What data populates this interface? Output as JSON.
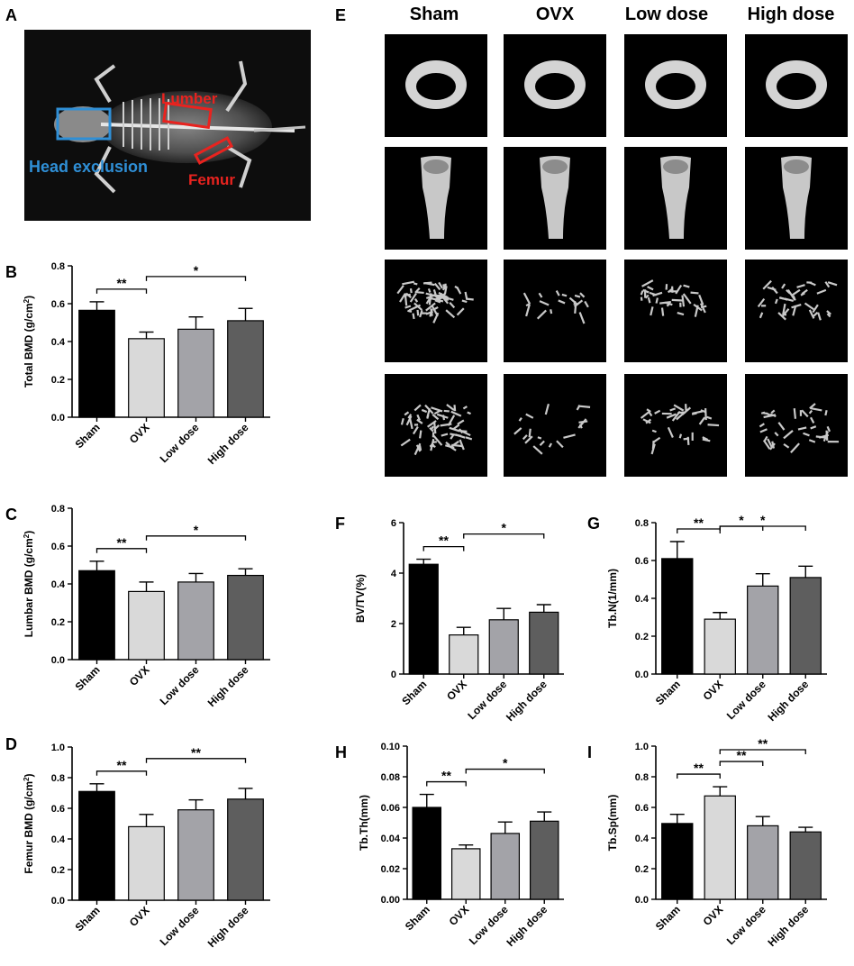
{
  "panels": {
    "A": "A",
    "B": "B",
    "C": "C",
    "D": "D",
    "E": "E",
    "F": "F",
    "G": "G",
    "H": "H",
    "I": "I"
  },
  "xray": {
    "labels": {
      "lumber": "Lumber",
      "head": "Head exclusion",
      "femur": "Femur"
    },
    "colors": {
      "lumber": "#e8231f",
      "femur": "#e8231f",
      "head": "#2f8fd6"
    }
  },
  "microct": {
    "columns": [
      "Sham",
      "OVX",
      "Low dose",
      "High dose"
    ],
    "rows": [
      "cortical cross-section",
      "femur 3D",
      "trabecular side view",
      "trabecular top view"
    ]
  },
  "colors": {
    "bars": [
      "#000000",
      "#d9d9d9",
      "#a3a3a8",
      "#5e5e5e"
    ]
  },
  "chart_data": [
    {
      "panel": "B",
      "type": "bar",
      "categories": [
        "Sham",
        "OVX",
        "Low dose",
        "High dose"
      ],
      "values": [
        0.565,
        0.415,
        0.465,
        0.51
      ],
      "errors": [
        0.045,
        0.035,
        0.065,
        0.065
      ],
      "ylabel_pre": "Total BMD (g/cm",
      "ylabel_sup": "2",
      "ylabel_post": ")",
      "ylim": [
        0,
        0.8
      ],
      "ticks": [
        "0.0",
        "0.2",
        "0.4",
        "0.6",
        "0.8"
      ],
      "sig": [
        {
          "from": 0,
          "to": 1,
          "label": "**"
        },
        {
          "from": 1,
          "to": 3,
          "label": "*"
        }
      ]
    },
    {
      "panel": "C",
      "type": "bar",
      "categories": [
        "Sham",
        "OVX",
        "Low dose",
        "High dose"
      ],
      "values": [
        0.47,
        0.36,
        0.41,
        0.445
      ],
      "errors": [
        0.05,
        0.05,
        0.045,
        0.035
      ],
      "ylabel_pre": "Lumbar BMD (g/cm",
      "ylabel_sup": "2",
      "ylabel_post": ")",
      "ylim": [
        0,
        0.8
      ],
      "ticks": [
        "0.0",
        "0.2",
        "0.4",
        "0.6",
        "0.8"
      ],
      "sig": [
        {
          "from": 0,
          "to": 1,
          "label": "**"
        },
        {
          "from": 1,
          "to": 3,
          "label": "*"
        }
      ]
    },
    {
      "panel": "D",
      "type": "bar",
      "categories": [
        "Sham",
        "OVX",
        "Low dose",
        "High dose"
      ],
      "values": [
        0.71,
        0.48,
        0.59,
        0.66
      ],
      "errors": [
        0.05,
        0.08,
        0.065,
        0.07
      ],
      "ylabel_pre": "Femur BMD (g/cm",
      "ylabel_sup": "2",
      "ylabel_post": ")",
      "ylim": [
        0,
        1.0
      ],
      "ticks": [
        "0.0",
        "0.2",
        "0.4",
        "0.6",
        "0.8",
        "1.0"
      ],
      "sig": [
        {
          "from": 0,
          "to": 1,
          "label": "**"
        },
        {
          "from": 1,
          "to": 3,
          "label": "**"
        }
      ]
    },
    {
      "panel": "F",
      "type": "bar",
      "categories": [
        "Sham",
        "OVX",
        "Low dose",
        "High dose"
      ],
      "values": [
        4.35,
        1.55,
        2.15,
        2.45
      ],
      "errors": [
        0.2,
        0.3,
        0.45,
        0.3
      ],
      "ylabel_pre": "BV/TV(%)",
      "ylabel_sup": "",
      "ylabel_post": "",
      "ylim": [
        0,
        6
      ],
      "ticks": [
        "0",
        "2",
        "4",
        "6"
      ],
      "sig": [
        {
          "from": 0,
          "to": 1,
          "label": "**"
        },
        {
          "from": 1,
          "to": 3,
          "label": "*"
        }
      ]
    },
    {
      "panel": "G",
      "type": "bar",
      "categories": [
        "Sham",
        "OVX",
        "Low dose",
        "High dose"
      ],
      "values": [
        0.61,
        0.29,
        0.465,
        0.51
      ],
      "errors": [
        0.09,
        0.035,
        0.065,
        0.06
      ],
      "ylabel_pre": "Tb.N(1/mm)",
      "ylabel_sup": "",
      "ylabel_post": "",
      "ylim": [
        0,
        0.8
      ],
      "ticks": [
        "0.0",
        "0.2",
        "0.4",
        "0.6",
        "0.8"
      ],
      "sig": [
        {
          "from": 0,
          "to": 1,
          "label": "**"
        },
        {
          "from": 1,
          "to": 2,
          "label": "*"
        },
        {
          "from": 1,
          "to": 3,
          "label": "*"
        }
      ]
    },
    {
      "panel": "H",
      "type": "bar",
      "categories": [
        "Sham",
        "OVX",
        "Low dose",
        "High dose"
      ],
      "values": [
        0.06,
        0.033,
        0.043,
        0.051
      ],
      "errors": [
        0.0085,
        0.0025,
        0.0075,
        0.006
      ],
      "ylabel_pre": "Tb.Th(mm)",
      "ylabel_sup": "",
      "ylabel_post": "",
      "ylim": [
        0,
        0.1
      ],
      "ticks": [
        "0.00",
        "0.02",
        "0.04",
        "0.06",
        "0.08",
        "0.10"
      ],
      "sig": [
        {
          "from": 0,
          "to": 1,
          "label": "**"
        },
        {
          "from": 1,
          "to": 3,
          "label": "*"
        }
      ]
    },
    {
      "panel": "I",
      "type": "bar",
      "categories": [
        "Sham",
        "OVX",
        "Low dose",
        "High dose"
      ],
      "values": [
        0.495,
        0.675,
        0.48,
        0.44
      ],
      "errors": [
        0.06,
        0.06,
        0.06,
        0.03
      ],
      "ylabel_pre": "Tb.Sp(mm)",
      "ylabel_sup": "",
      "ylabel_post": "",
      "ylim": [
        0,
        1.0
      ],
      "ticks": [
        "0.0",
        "0.2",
        "0.4",
        "0.6",
        "0.8",
        "1.0"
      ],
      "sig": [
        {
          "from": 0,
          "to": 1,
          "label": "**"
        },
        {
          "from": 1,
          "to": 2,
          "label": "**"
        },
        {
          "from": 1,
          "to": 3,
          "label": "**"
        }
      ]
    }
  ]
}
